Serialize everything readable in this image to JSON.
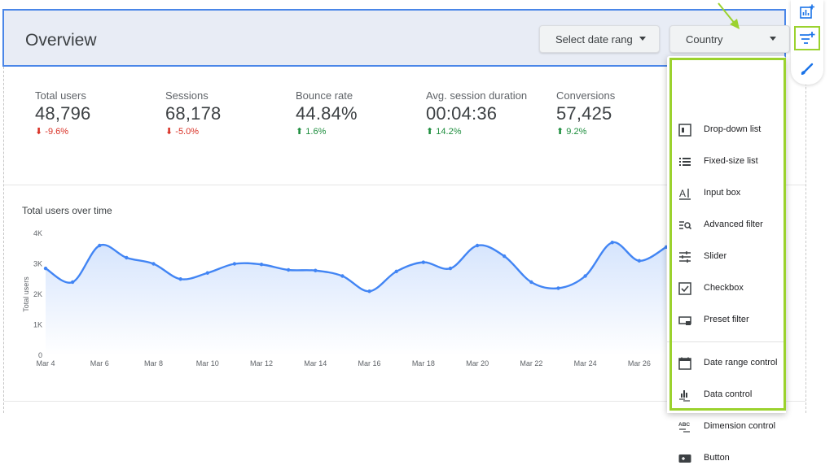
{
  "header": {
    "title": "Overview",
    "date_control_label": "Select date range",
    "country_control_label": "Country"
  },
  "toolbar": {
    "items": [
      "add-chart-icon",
      "add-control-icon",
      "theme-brush-icon"
    ]
  },
  "kpis": [
    {
      "label": "Total users",
      "value": "48,796",
      "delta": "-9.6%",
      "direction": "down"
    },
    {
      "label": "Sessions",
      "value": "68,178",
      "delta": "-5.0%",
      "direction": "down"
    },
    {
      "label": "Bounce rate",
      "value": "44.84%",
      "delta": "1.6%",
      "direction": "up"
    },
    {
      "label": "Avg. session duration",
      "value": "00:04:36",
      "delta": "14.2%",
      "direction": "up"
    },
    {
      "label": "Conversions",
      "value": "57,425",
      "delta": "9.2%",
      "direction": "up"
    }
  ],
  "menu": {
    "items": [
      {
        "label": "Drop-down list",
        "icon": "dropdown-list-icon"
      },
      {
        "label": "Fixed-size list",
        "icon": "fixed-list-icon"
      },
      {
        "label": "Input box",
        "icon": "input-box-icon"
      },
      {
        "label": "Advanced filter",
        "icon": "advanced-filter-icon"
      },
      {
        "label": "Slider",
        "icon": "slider-icon"
      },
      {
        "label": "Checkbox",
        "icon": "checkbox-icon"
      },
      {
        "label": "Preset filter",
        "icon": "preset-filter-icon"
      },
      {
        "label": "Date range control",
        "icon": "calendar-icon"
      },
      {
        "label": "Data control",
        "icon": "data-control-icon"
      },
      {
        "label": "Dimension control",
        "icon": "dimension-control-icon"
      },
      {
        "label": "Button",
        "icon": "button-icon"
      }
    ]
  },
  "colors": {
    "accent": "#4a86e8",
    "highlight_green": "#9bd22e",
    "negative": "#d93025",
    "positive": "#1e8e3e",
    "line": "#4285f4"
  },
  "chart_data": {
    "type": "line",
    "title": "Total users over time",
    "ylabel": "Total users",
    "xlabel": "",
    "ylim": [
      0,
      4000
    ],
    "y_ticks": [
      "0",
      "1K",
      "2K",
      "3K",
      "4K"
    ],
    "x_tick_labels": [
      "Mar 4",
      "Mar 6",
      "Mar 8",
      "Mar 10",
      "Mar 12",
      "Mar 14",
      "Mar 16",
      "Mar 18",
      "Mar 20",
      "Mar 22",
      "Mar 24",
      "Mar 26"
    ],
    "x": [
      "Mar 4",
      "Mar 5",
      "Mar 6",
      "Mar 7",
      "Mar 8",
      "Mar 9",
      "Mar 10",
      "Mar 11",
      "Mar 12",
      "Mar 13",
      "Mar 14",
      "Mar 15",
      "Mar 16",
      "Mar 17",
      "Mar 18",
      "Mar 19",
      "Mar 20",
      "Mar 21",
      "Mar 22",
      "Mar 23",
      "Mar 24",
      "Mar 25",
      "Mar 26",
      "Mar 27"
    ],
    "series": [
      {
        "values": [
          2850,
          2400,
          3600,
          3200,
          3000,
          2500,
          2700,
          3000,
          2980,
          2800,
          2780,
          2600,
          2100,
          2750,
          3050,
          2850,
          3600,
          3250,
          2400,
          2200,
          2600,
          3700,
          3100,
          3550
        ]
      }
    ],
    "grid": false,
    "area_fill": true
  }
}
